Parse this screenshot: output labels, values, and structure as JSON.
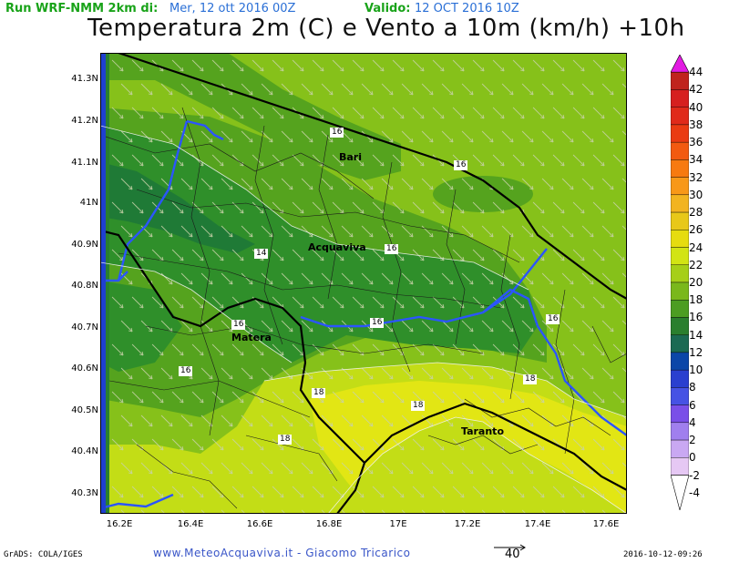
{
  "header": {
    "run_label": "Run WRF-NMM 2km di:",
    "run_date": "Mer, 12 ott 2016 00Z",
    "valid_label": "Valido:",
    "valid_date": "12 OCT 2016 10Z",
    "title": "Temperatura 2m (C) e Vento a 10m (km/h) +10h"
  },
  "map": {
    "lat_ticks": [
      "41.3N",
      "41.2N",
      "41.1N",
      "41N",
      "40.9N",
      "40.8N",
      "40.7N",
      "40.6N",
      "40.5N",
      "40.4N",
      "40.3N"
    ],
    "lon_ticks": [
      "16.2E",
      "16.4E",
      "16.6E",
      "16.8E",
      "17E",
      "17.2E",
      "17.4E",
      "17.6E"
    ],
    "cities": [
      {
        "name": "Bari"
      },
      {
        "name": "Acquaviva"
      },
      {
        "name": "Matera"
      },
      {
        "name": "Taranto"
      }
    ],
    "contour_labels": [
      "16",
      "16",
      "16",
      "14",
      "16",
      "16",
      "16",
      "16",
      "16",
      "18",
      "18",
      "18",
      "18"
    ],
    "colors": {
      "t12": "#1f7a36",
      "t14": "#2f8f2a",
      "t16": "#55a31e",
      "t18": "#86c11a",
      "t20": "#c3dd16",
      "t22": "#e2e614",
      "coast_water": "#1f3fd0",
      "boundary": "#000000",
      "river": "#2b55ff"
    }
  },
  "colorbar": {
    "labels": [
      "44",
      "42",
      "40",
      "38",
      "36",
      "34",
      "32",
      "30",
      "28",
      "26",
      "24",
      "22",
      "20",
      "18",
      "16",
      "14",
      "12",
      "10",
      "8",
      "6",
      "4",
      "2",
      "0",
      "-2",
      "-4"
    ],
    "colors": [
      "#e21be2",
      "#c0231d",
      "#d61f1f",
      "#e02a1a",
      "#ea3b12",
      "#f25a10",
      "#f77a10",
      "#f89818",
      "#f2b420",
      "#e8c819",
      "#e6dc0f",
      "#d2e414",
      "#a6cf18",
      "#7ab81b",
      "#4c9d22",
      "#2a7f2e",
      "#1b6a53",
      "#0b46a8",
      "#2a3fcf",
      "#4652e4",
      "#7a4fe8",
      "#a07fee",
      "#c9a8f2",
      "#e6c8f4",
      "#ffffff"
    ]
  },
  "vector_ref": "40",
  "footer": {
    "left": "GrADS: COLA/IGES",
    "center": "www.MeteoAcquaviva.it  -  Giacomo Tricarico",
    "right": "2016-10-12-09:26"
  }
}
